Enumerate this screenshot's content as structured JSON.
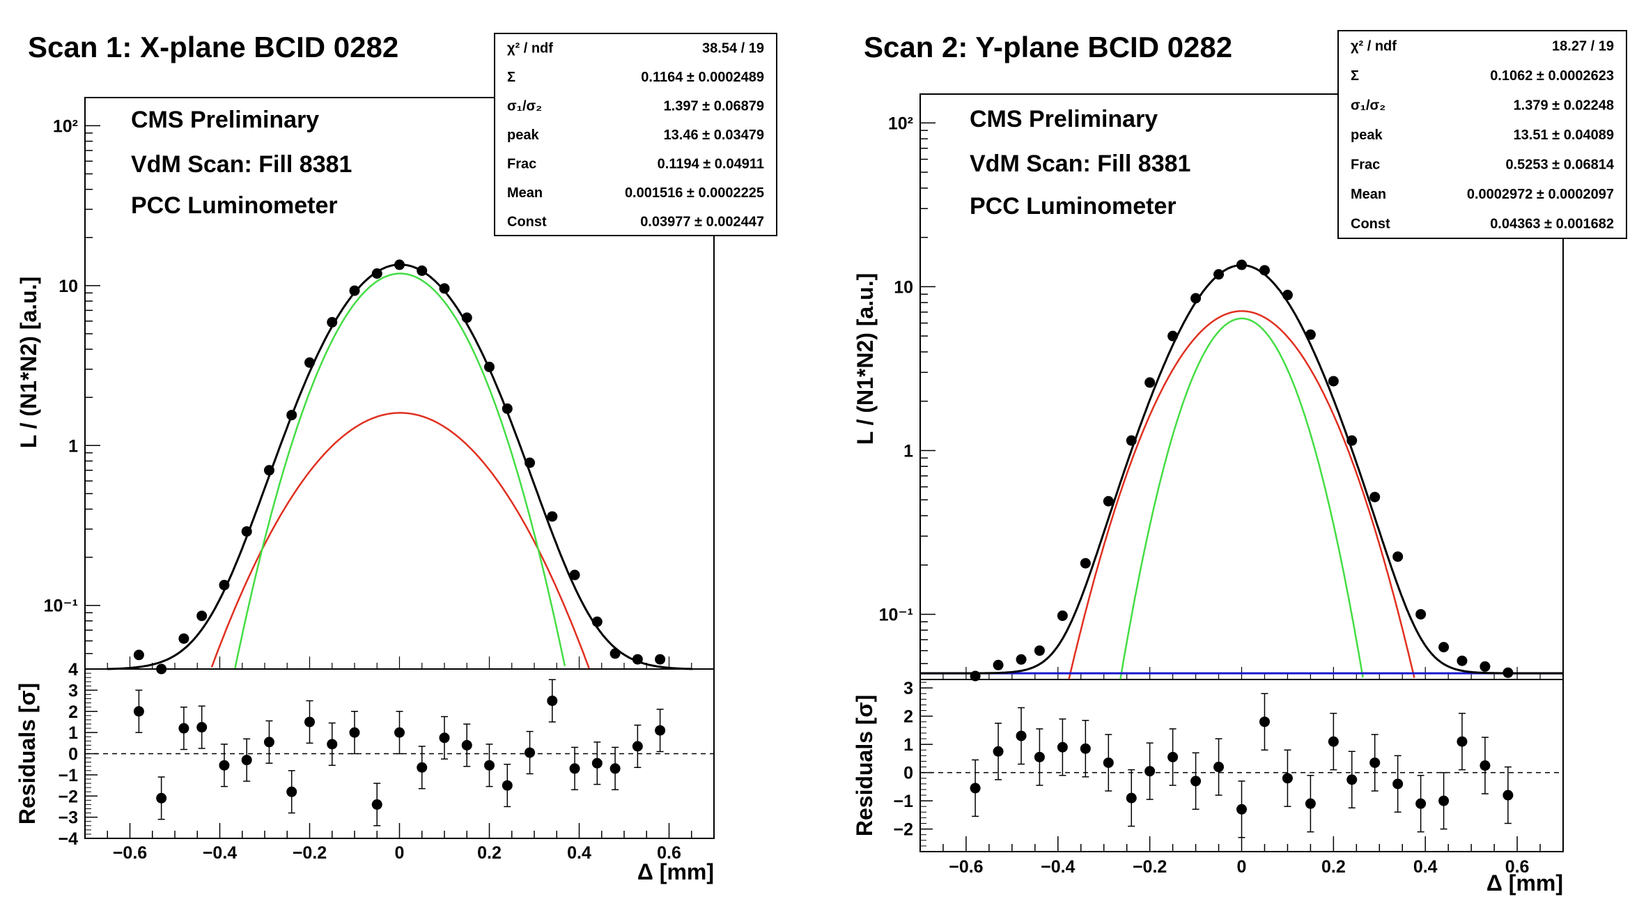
{
  "chart_data": [
    {
      "type": "scatter",
      "title": "Scan 1: X-plane BCID 0282",
      "annotations": [
        "CMS Preliminary",
        "VdM Scan: Fill 8381",
        "PCC Luminometer"
      ],
      "ylabel": "L / (N1*N2) [a.u.]",
      "xlabel": "Δ [mm]",
      "residual_ylabel": "Residuals [σ]",
      "log_y": true,
      "xlim": [
        -0.7,
        0.7
      ],
      "ylim": [
        0.04,
        150
      ],
      "residual_ylim": [
        -4,
        4
      ],
      "x_ticks": [
        -0.6,
        -0.4,
        -0.2,
        0,
        0.2,
        0.4,
        0.6
      ],
      "x_tick_labels": [
        "−0.6",
        "−0.4",
        "−0.2",
        "0",
        "0.2",
        "0.4",
        "0.6"
      ],
      "y_ticks": [
        100,
        10,
        1,
        0.1
      ],
      "y_tick_labels": [
        "10²",
        "10",
        "1",
        "10⁻¹"
      ],
      "residual_ticks": [
        4,
        3,
        2,
        1,
        0,
        -1,
        -2,
        -3,
        -4
      ],
      "residual_tick_labels": [
        "4",
        "3",
        "2",
        "1",
        "0",
        "−1",
        "−2",
        "−3",
        "−4"
      ],
      "stats": [
        {
          "label": "χ² / ndf",
          "value": "38.54 / 19"
        },
        {
          "label": "Σ",
          "value": "0.1164 ± 0.0002489"
        },
        {
          "label": "σ₁/σ₂",
          "value": "1.397 ± 0.06879"
        },
        {
          "label": "peak",
          "value": "13.46 ± 0.03479"
        },
        {
          "label": "Frac",
          "value": "0.1194 ± 0.04911"
        },
        {
          "label": "Mean",
          "value": "0.001516 ± 0.0002225"
        },
        {
          "label": "Const",
          "value": "0.03977 ± 0.002447"
        }
      ],
      "fit": {
        "peak": 13.46,
        "sigma": 0.1164,
        "sigma_ratio": 1.397,
        "frac": 0.1194,
        "mean": 0.001516,
        "const": 0.03977,
        "colors": {
          "total": "#000000",
          "narrow": "#44dd44",
          "wide": "#e03020"
        }
      },
      "points": {
        "x": [
          -0.58,
          -0.53,
          -0.48,
          -0.44,
          -0.39,
          -0.34,
          -0.29,
          -0.24,
          -0.2,
          -0.15,
          -0.1,
          -0.05,
          0.0,
          0.05,
          0.1,
          0.15,
          0.2,
          0.24,
          0.29,
          0.34,
          0.39,
          0.44,
          0.48,
          0.53,
          0.58
        ],
        "y": [
          0.049,
          0.04,
          0.062,
          0.086,
          0.134,
          0.29,
          0.7,
          1.55,
          3.3,
          5.9,
          9.3,
          11.9,
          13.5,
          12.4,
          9.6,
          6.3,
          3.1,
          1.7,
          0.78,
          0.36,
          0.155,
          0.079,
          0.05,
          0.046,
          0.046
        ]
      },
      "residuals": {
        "x": [
          -0.58,
          -0.53,
          -0.48,
          -0.44,
          -0.39,
          -0.34,
          -0.29,
          -0.24,
          -0.2,
          -0.15,
          -0.1,
          -0.05,
          0.0,
          0.05,
          0.1,
          0.15,
          0.2,
          0.24,
          0.29,
          0.34,
          0.39,
          0.44,
          0.48,
          0.53,
          0.58
        ],
        "y": [
          2.0,
          -2.1,
          1.2,
          1.25,
          -0.55,
          -0.3,
          0.55,
          -1.8,
          1.5,
          0.45,
          1.0,
          -2.4,
          1.0,
          -0.65,
          0.75,
          0.4,
          -0.55,
          -1.5,
          0.05,
          2.5,
          -0.7,
          -0.45,
          -0.7,
          0.35,
          1.1
        ]
      }
    },
    {
      "type": "scatter",
      "title": "Scan 2: Y-plane BCID 0282",
      "annotations": [
        "CMS Preliminary",
        "VdM Scan: Fill 8381",
        "PCC Luminometer"
      ],
      "ylabel": "L / (N1*N2) [a.u.]",
      "xlabel": "Δ [mm]",
      "residual_ylabel": "Residuals [σ]",
      "log_y": true,
      "xlim": [
        -0.7,
        0.7
      ],
      "ylim": [
        0.04,
        150
      ],
      "residual_ylim": [
        -2.8,
        3.3
      ],
      "x_ticks": [
        -0.6,
        -0.4,
        -0.2,
        0,
        0.2,
        0.4,
        0.6
      ],
      "x_tick_labels": [
        "−0.6",
        "−0.4",
        "−0.2",
        "0",
        "0.2",
        "0.4",
        "0.6"
      ],
      "y_ticks": [
        100,
        10,
        1,
        0.1
      ],
      "y_tick_labels": [
        "10²",
        "10",
        "1",
        "10⁻¹"
      ],
      "residual_ticks": [
        3,
        2,
        1,
        0,
        -1,
        -2
      ],
      "residual_tick_labels": [
        "3",
        "2",
        "1",
        "0",
        "−1",
        "−2"
      ],
      "stats": [
        {
          "label": "χ² / ndf",
          "value": "18.27 / 19"
        },
        {
          "label": "Σ",
          "value": "0.1062 ± 0.0002623"
        },
        {
          "label": "σ₁/σ₂",
          "value": "1.379 ± 0.02248"
        },
        {
          "label": "peak",
          "value": "13.51 ± 0.04089"
        },
        {
          "label": "Frac",
          "value": "0.5253 ± 0.06814"
        },
        {
          "label": "Mean",
          "value": "0.0002972 ± 0.0002097"
        },
        {
          "label": "Const",
          "value": "0.04363 ± 0.001682"
        }
      ],
      "fit": {
        "peak": 13.51,
        "sigma": 0.1062,
        "sigma_ratio": 1.379,
        "frac": 0.5253,
        "mean": 0.0002972,
        "const": 0.04363,
        "colors": {
          "total": "#000000",
          "narrow": "#44dd44",
          "wide": "#e03020",
          "const": "#1a1acc"
        }
      },
      "points": {
        "x": [
          -0.58,
          -0.53,
          -0.48,
          -0.44,
          -0.39,
          -0.34,
          -0.29,
          -0.24,
          -0.2,
          -0.15,
          -0.1,
          -0.05,
          0.0,
          0.05,
          0.1,
          0.15,
          0.2,
          0.24,
          0.29,
          0.34,
          0.39,
          0.44,
          0.48,
          0.53,
          0.58
        ],
        "y": [
          0.042,
          0.049,
          0.053,
          0.06,
          0.098,
          0.205,
          0.49,
          1.15,
          2.6,
          5.0,
          8.5,
          11.9,
          13.6,
          12.6,
          8.9,
          5.1,
          2.65,
          1.15,
          0.52,
          0.225,
          0.1,
          0.063,
          0.052,
          0.048,
          0.044
        ]
      },
      "residuals": {
        "x": [
          -0.58,
          -0.53,
          -0.48,
          -0.44,
          -0.39,
          -0.34,
          -0.29,
          -0.24,
          -0.2,
          -0.15,
          -0.1,
          -0.05,
          0.0,
          0.05,
          0.1,
          0.15,
          0.2,
          0.24,
          0.29,
          0.34,
          0.39,
          0.44,
          0.48,
          0.53,
          0.58
        ],
        "y": [
          -0.55,
          0.75,
          1.3,
          0.55,
          0.9,
          0.85,
          0.35,
          -0.9,
          0.05,
          0.55,
          -0.3,
          0.2,
          -1.3,
          1.8,
          -0.2,
          -1.1,
          1.1,
          -0.25,
          0.35,
          -0.4,
          -1.1,
          -1.0,
          1.1,
          0.25,
          -0.8
        ]
      }
    }
  ]
}
